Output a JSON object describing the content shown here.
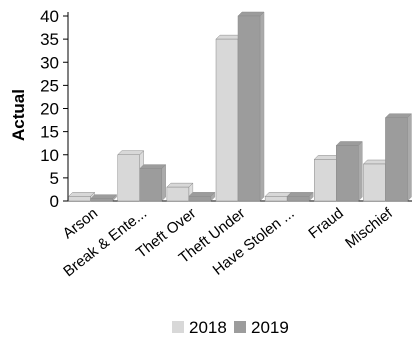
{
  "chart_data": {
    "type": "bar",
    "ylabel": "Actual",
    "ylim": [
      0,
      40
    ],
    "yticks": [
      0,
      5,
      10,
      15,
      20,
      25,
      30,
      35,
      40
    ],
    "categories": [
      "Arson",
      "Break & Ente...",
      "Theft Over",
      "Theft Under",
      "Have Stolen ...",
      "Fraud",
      "Mischief"
    ],
    "series": [
      {
        "name": "2018",
        "color": "#d8d8d8",
        "values": [
          1,
          10,
          3,
          35,
          1,
          9,
          8
        ]
      },
      {
        "name": "2019",
        "color": "#9c9c9c",
        "values": [
          0.5,
          7,
          1,
          40,
          1,
          12,
          18
        ]
      }
    ],
    "grid": false,
    "legend": "bottom"
  }
}
